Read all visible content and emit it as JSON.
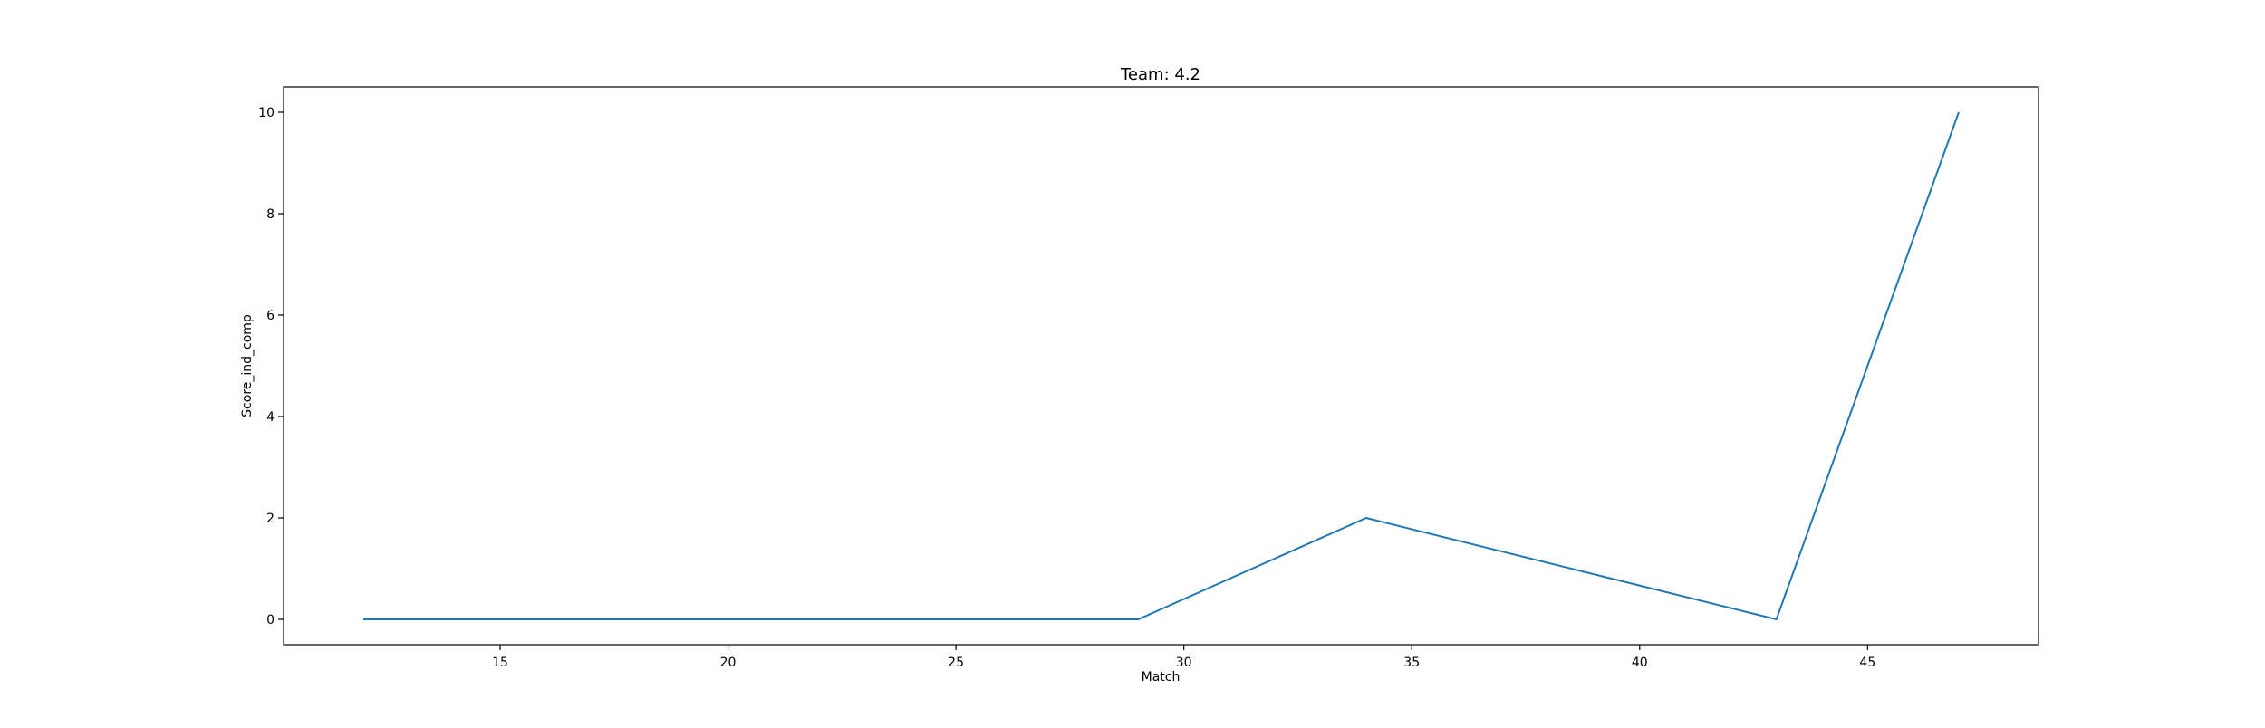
{
  "chart_data": {
    "type": "line",
    "title": "Team: 4.2",
    "xlabel": "Match",
    "ylabel": "Score_ind_comp",
    "xlim": [
      10.25,
      48.75
    ],
    "ylim": [
      -0.5,
      10.5
    ],
    "xticks": [
      15,
      20,
      25,
      30,
      35,
      40,
      45
    ],
    "yticks": [
      0,
      2,
      4,
      6,
      8,
      10
    ],
    "grid": false,
    "series": [
      {
        "color": "#1f77b4",
        "x": [
          12,
          29,
          34,
          43,
          47
        ],
        "y": [
          0,
          0,
          2,
          0,
          10
        ]
      }
    ]
  }
}
